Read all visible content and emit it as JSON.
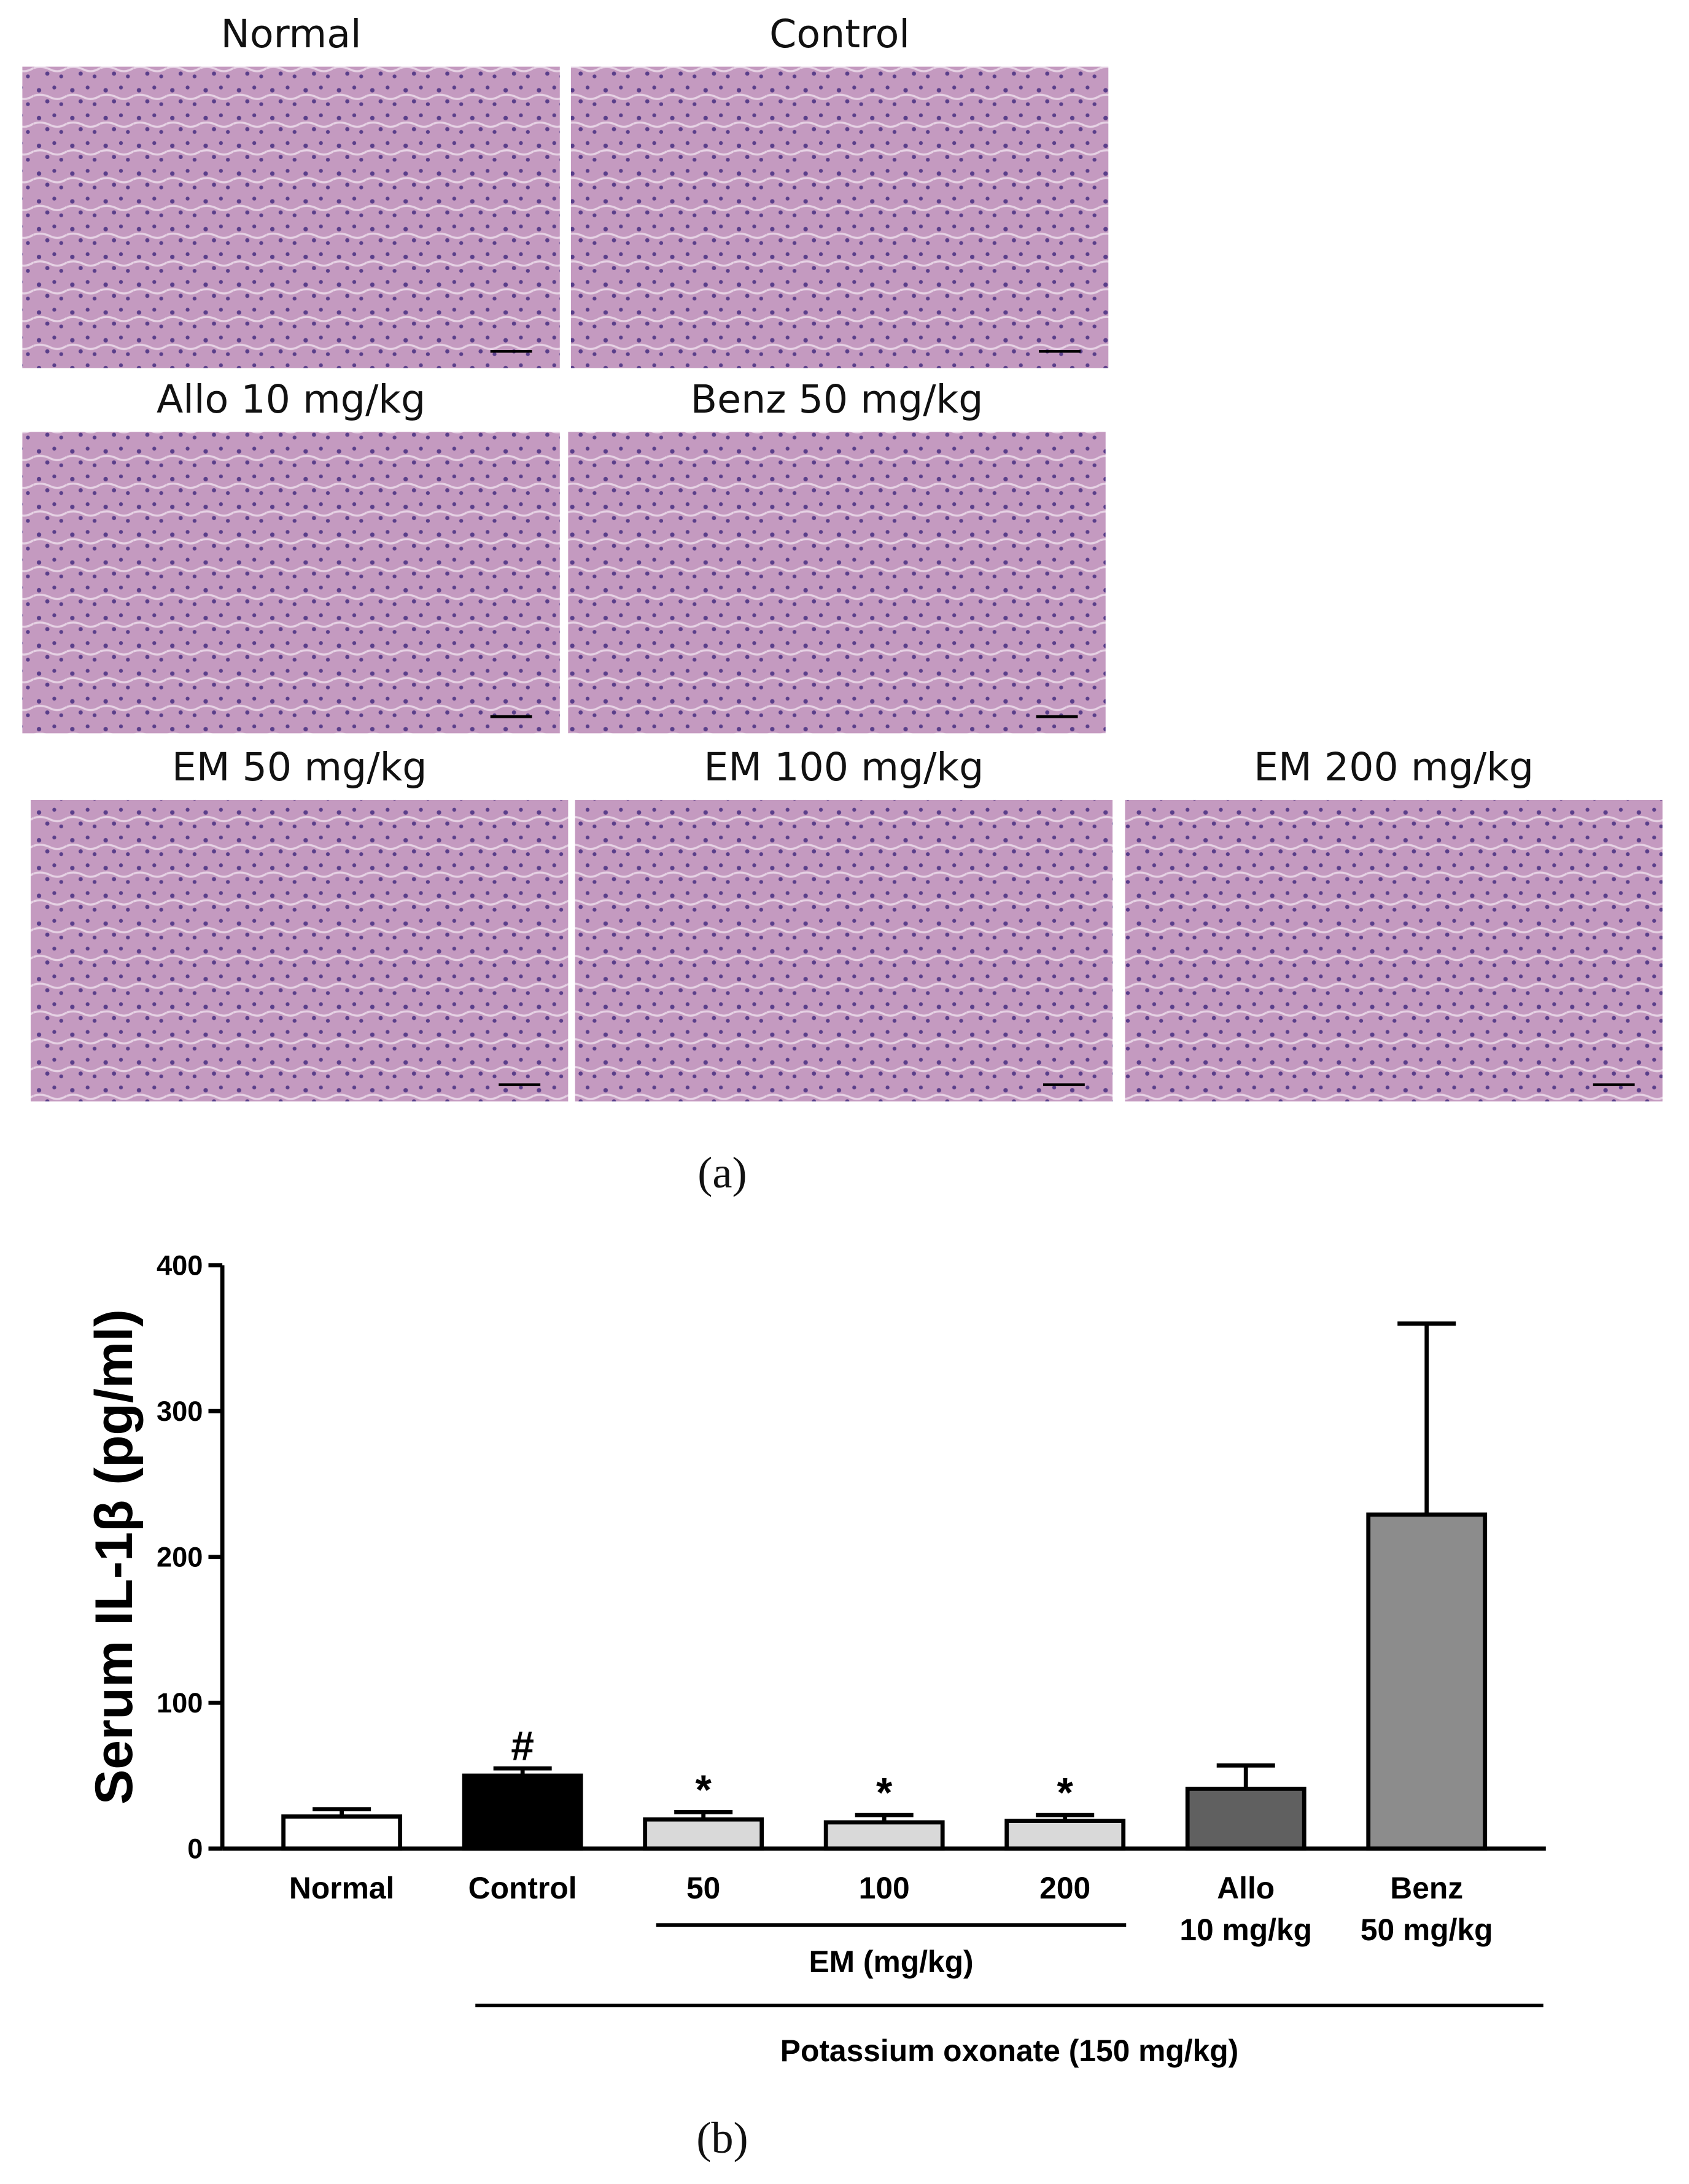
{
  "panel_a": {
    "label": "(a)",
    "images": [
      "Normal",
      "Control",
      "Allo 10 mg/kg",
      "Benz 50 mg/kg",
      "EM 50 mg/kg",
      "EM 100 mg/kg",
      "EM 200 mg/kg"
    ]
  },
  "panel_b": {
    "label": "(b)"
  },
  "chart_data": {
    "type": "bar",
    "y_label": "Serum IL-1β (pg/ml)",
    "categories": [
      "Normal",
      "Control",
      "50",
      "100",
      "200",
      "Allo\n10 mg/kg",
      "Benz\n50 mg/kg"
    ],
    "values": [
      22,
      50,
      20,
      18,
      19,
      41,
      229
    ],
    "errors": [
      5,
      5,
      5,
      5,
      4,
      16,
      131
    ],
    "colors": [
      "#ffffff",
      "#000000",
      "#d9d9d9",
      "#d9d9d9",
      "#d9d9d9",
      "#606060",
      "#8c8c8c"
    ],
    "ylim": [
      0,
      400
    ],
    "yticks": [
      0,
      100,
      200,
      300,
      400
    ],
    "annotations": [
      {
        "text": "#",
        "category": "Control"
      },
      {
        "text": "*",
        "category": "50"
      },
      {
        "text": "*",
        "category": "100"
      },
      {
        "text": "*",
        "category": "200"
      }
    ],
    "groups": [
      {
        "label": "EM (mg/kg)",
        "from": "50",
        "to": "200"
      },
      {
        "label": "Potassium oxonate (150 mg/kg)",
        "from": "Control",
        "to": "Benz\n50 mg/kg"
      }
    ]
  }
}
